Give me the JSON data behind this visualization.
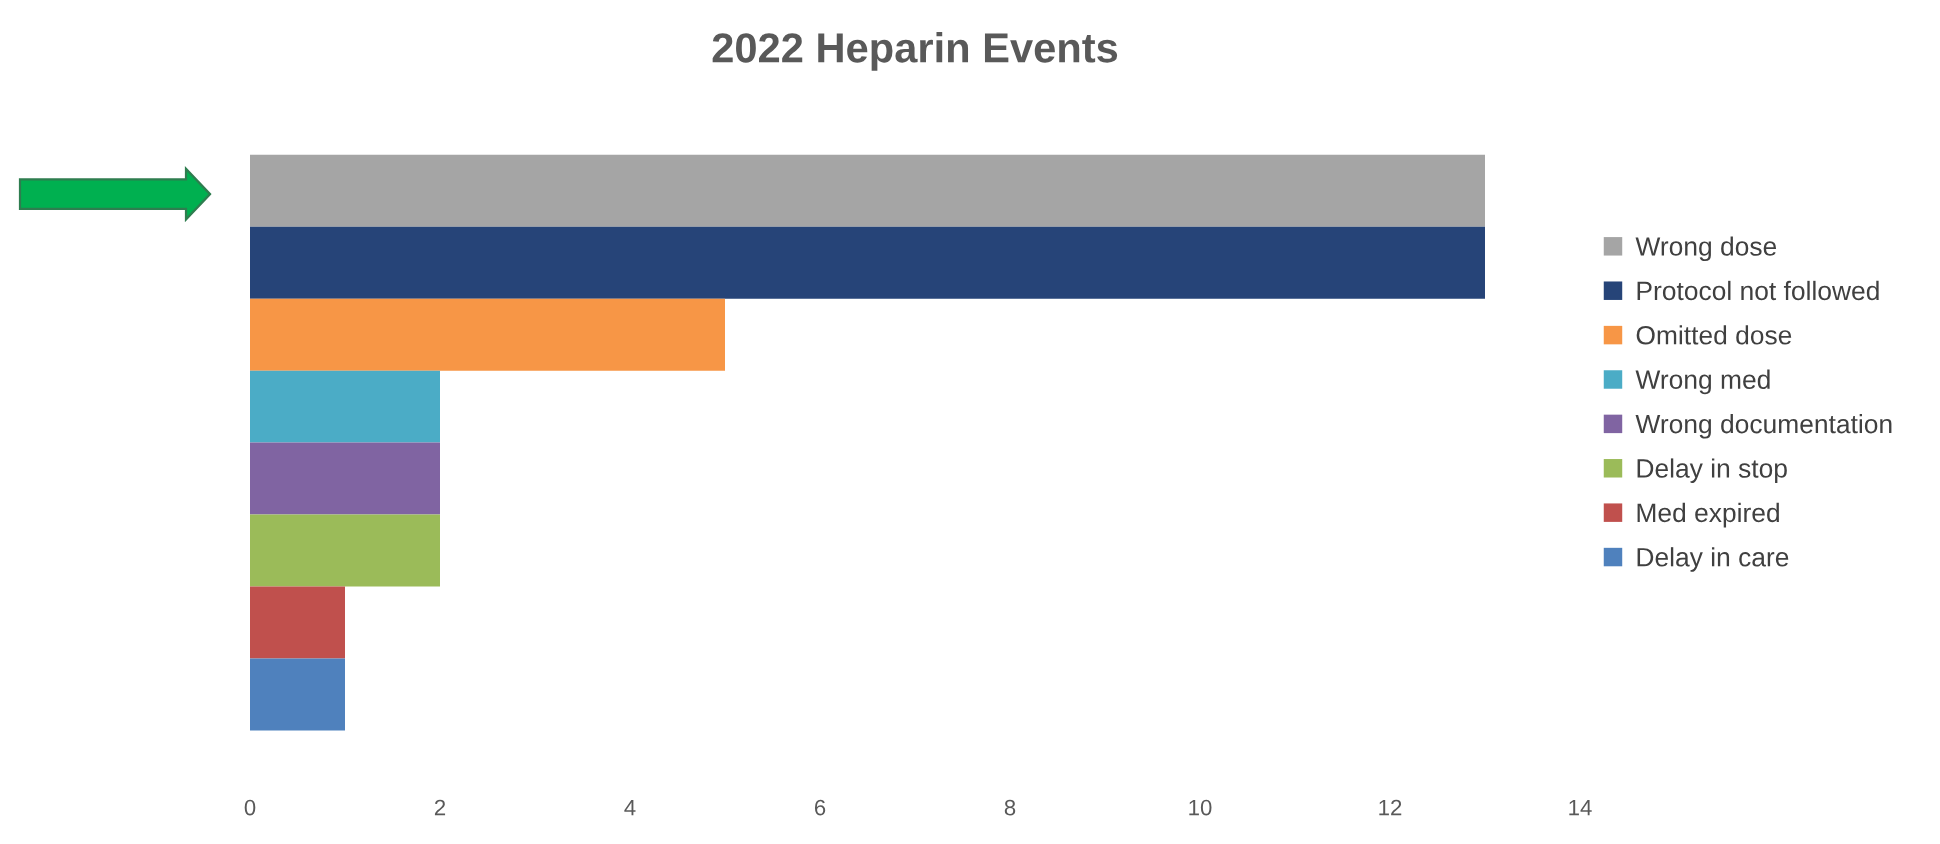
{
  "chart_data": {
    "type": "bar",
    "orientation": "horizontal",
    "stacked": true,
    "title": "2022 Heparin Events",
    "categories": [
      null,
      null,
      null,
      null,
      null,
      null,
      null,
      null
    ],
    "series": [
      {
        "name": "Wrong dose",
        "color": "#a5a5a5",
        "values": [
          13,
          0,
          0,
          0,
          0,
          0,
          0,
          0
        ]
      },
      {
        "name": "Protocol not followed",
        "color": "#264478",
        "values": [
          0,
          13,
          0,
          0,
          0,
          0,
          0,
          0
        ]
      },
      {
        "name": "Omitted dose",
        "color": "#f79646",
        "values": [
          0,
          0,
          5,
          0,
          0,
          0,
          0,
          0
        ]
      },
      {
        "name": "Wrong med",
        "color": "#4bacc6",
        "values": [
          0,
          0,
          0,
          2,
          0,
          0,
          0,
          0
        ]
      },
      {
        "name": "Wrong documentation",
        "color": "#8064a2",
        "values": [
          0,
          0,
          0,
          0,
          2,
          0,
          0,
          0
        ]
      },
      {
        "name": "Delay in stop",
        "color": "#9bbb59",
        "values": [
          0,
          0,
          0,
          0,
          0,
          2,
          0,
          0
        ]
      },
      {
        "name": "Med expired",
        "color": "#c0504d",
        "values": [
          0,
          0,
          0,
          0,
          0,
          0,
          1,
          0
        ]
      },
      {
        "name": "Delay in care",
        "color": "#4f81bd",
        "values": [
          0,
          0,
          0,
          0,
          0,
          0,
          0,
          1
        ]
      }
    ],
    "xlim": [
      0,
      14
    ],
    "xticks": [
      0,
      2,
      4,
      6,
      8,
      10,
      12,
      14
    ],
    "tick_labels": "x",
    "legend": "right"
  }
}
